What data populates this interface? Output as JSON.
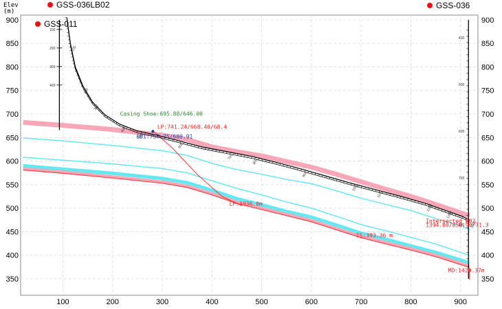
{
  "chart_data": {
    "type": "line",
    "ylabel": "Elev",
    "yunit": "(m)",
    "x_ticks": [
      100,
      200,
      300,
      400,
      500,
      600,
      700,
      800,
      900
    ],
    "y_ticks": [
      350,
      400,
      450,
      500,
      550,
      600,
      650,
      700,
      750,
      800,
      850,
      900
    ],
    "xlim": [
      15,
      935
    ],
    "ylim": [
      315,
      910
    ],
    "grid": true,
    "wells": [
      {
        "name": "GSS-036LB02",
        "color": "#ee1111"
      },
      {
        "name": "GSS-011",
        "color": "#ee1111"
      },
      {
        "name": "GSS-036",
        "color": "#ee1111"
      }
    ],
    "well_011": {
      "x": 93,
      "y_top": 900,
      "y_bottom": 666,
      "depth_labels": [
        "100",
        "200",
        "300",
        "400"
      ]
    },
    "well_036": {
      "x": 916,
      "y_top": 900,
      "y_bottom": 350,
      "depth_labels": [
        "400",
        "500",
        "600",
        "700",
        "800"
      ]
    },
    "trajectory": {
      "color": "#000000",
      "x": [
        108,
        115,
        125,
        140,
        160,
        185,
        215,
        250,
        290,
        330,
        380,
        430,
        480,
        530,
        580,
        630,
        680,
        730,
        780,
        830,
        870,
        905,
        918
      ],
      "y": [
        905,
        850,
        800,
        760,
        725,
        698,
        678,
        664,
        655,
        644,
        630,
        620,
        610,
        597,
        583,
        568,
        553,
        539,
        525,
        510,
        495,
        482,
        475
      ],
      "md_labels": [
        "100",
        "200",
        "300",
        "400",
        "500",
        "600",
        "700",
        "800",
        "900",
        "1000",
        "1100",
        "1200",
        "1300",
        "1400"
      ]
    },
    "series": [
      {
        "color": "#f7a8b8",
        "width": 7,
        "x": [
          20,
          100,
          200,
          300,
          350,
          400,
          450,
          500,
          550,
          600,
          650,
          700,
          750,
          800,
          850,
          900,
          918
        ],
        "y": [
          682,
          676,
          667,
          655,
          646,
          630,
          620,
          611,
          599,
          587,
          572,
          556,
          540,
          525,
          508,
          490,
          484
        ]
      },
      {
        "color": "#66e8f0",
        "width": 1.5,
        "x": [
          20,
          100,
          200,
          300,
          350,
          400,
          450,
          500,
          550,
          600,
          650,
          700,
          750,
          800,
          850,
          900,
          918
        ],
        "y": [
          649,
          643,
          633,
          622,
          612,
          595,
          582,
          572,
          561,
          552,
          537,
          521,
          508,
          495,
          478,
          462,
          455
        ]
      },
      {
        "color": "#66e8f0",
        "width": 1.5,
        "x": [
          20,
          100,
          200,
          300,
          350,
          400,
          450,
          500,
          550,
          600,
          650,
          700,
          750,
          800,
          850,
          900,
          918
        ],
        "y": [
          608,
          602,
          594,
          584,
          575,
          558,
          542,
          528,
          513,
          500,
          483,
          465,
          452,
          438,
          424,
          406,
          400
        ]
      },
      {
        "color": "#66e8f0",
        "width": 5,
        "x": [
          20,
          100,
          200,
          300,
          350,
          400,
          450,
          500,
          550,
          600,
          650,
          700,
          750,
          800,
          850,
          900,
          918
        ],
        "y": [
          590,
          583,
          574,
          563,
          554,
          538,
          520,
          507,
          493,
          481,
          464,
          447,
          434,
          420,
          406,
          390,
          384
        ]
      },
      {
        "color": "#f7a8b8",
        "width": 4,
        "x": [
          20,
          100,
          200,
          300,
          350,
          400,
          450,
          500,
          550,
          600,
          650,
          700,
          750,
          800,
          850,
          900,
          918
        ],
        "y": [
          584,
          577,
          567,
          556,
          547,
          531,
          513,
          500,
          487,
          474,
          457,
          440,
          427,
          414,
          400,
          383,
          377
        ]
      },
      {
        "color": "#ee4444",
        "width": 1.2,
        "x": [
          20,
          100,
          200,
          300,
          350,
          400,
          450,
          500,
          550,
          600,
          650,
          700,
          750,
          800,
          850,
          900,
          918
        ],
        "y": [
          581,
          574,
          564,
          553,
          544,
          528,
          510,
          497,
          484,
          471,
          454,
          437,
          424,
          411,
          397,
          380,
          374
        ]
      }
    ],
    "lateral": {
      "color": "#ee3333",
      "x": [
        280,
        320,
        370,
        420,
        460
      ],
      "y": [
        665,
        628,
        572,
        525,
        505
      ]
    },
    "annotations": [
      {
        "text": "Casing Shoe:695.88/646.00",
        "color": "#2e8b2e",
        "x": 215,
        "y": 696
      },
      {
        "text": "LP:741.24/668.40/68.4",
        "color": "#ee2222",
        "x": 290,
        "y": 669
      },
      {
        "text": "B01:757.75/680.91",
        "color": "#2244aa",
        "x": 248,
        "y": 648
      },
      {
        "text": "LP:1036.0m",
        "color": "#ee2222",
        "x": 435,
        "y": 505
      },
      {
        "text": "Intersected B02",
        "color": "#ee2222",
        "x": 830,
        "y": 469
      },
      {
        "text": "1394.00/850.90/71.3",
        "color": "#ee2222",
        "x": 830,
        "y": 460
      },
      {
        "text": "IS:393.36 m",
        "color": "#ee2222",
        "x": 690,
        "y": 438
      },
      {
        "text": "MD:1429.37m",
        "color": "#ee2222",
        "x": 875,
        "y": 364
      }
    ],
    "points": [
      {
        "x": 281,
        "y": 663,
        "color": "#2244aa"
      },
      {
        "x": 918,
        "y": 368,
        "color": "#ee2222"
      }
    ]
  }
}
